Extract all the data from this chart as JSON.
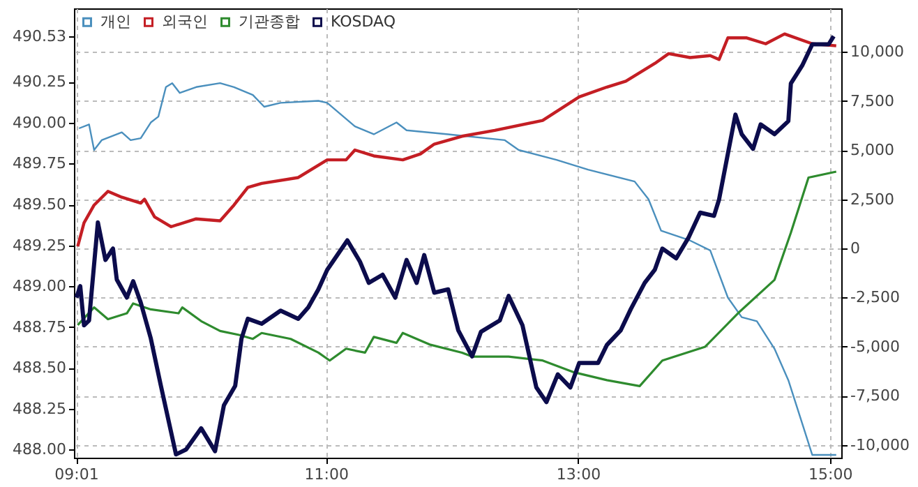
{
  "chart_data": {
    "type": "line",
    "xlim": [
      9.0,
      15.09
    ],
    "xticks": [
      {
        "value": 9.0167,
        "label": "09:01"
      },
      {
        "value": 11,
        "label": "11:00"
      },
      {
        "value": 13,
        "label": "13:00"
      },
      {
        "value": 15,
        "label": "15:00"
      }
    ],
    "ylim": [
      487.95,
      490.7
    ],
    "yticks": [
      {
        "value": 488,
        "label": "488.00"
      },
      488.25,
      {
        "value": 488.5,
        "label": "488.50"
      },
      488.75,
      {
        "value": 489,
        "label": "489.00"
      },
      489.25,
      {
        "value": 489.5,
        "label": "489.50"
      },
      489.75,
      {
        "value": 490,
        "label": "490.00"
      },
      490.25,
      490.53
    ],
    "y2lim": [
      -10640,
      12200
    ],
    "y2ticks": [
      {
        "value": -10000,
        "label": "-10,000"
      },
      {
        "value": -7500,
        "label": "-7,500"
      },
      {
        "value": -5000,
        "label": "-5,000"
      },
      {
        "value": -2500,
        "label": "-2,500"
      },
      0,
      {
        "value": 2500,
        "label": "2,500"
      },
      {
        "value": 5000,
        "label": "5,000"
      },
      {
        "value": 7500,
        "label": "7,500"
      },
      {
        "value": 10000,
        "label": "10,000"
      }
    ],
    "grid": true,
    "legend": "top left",
    "line_style": "solid",
    "marker": "none",
    "series": [
      {
        "name": "개인",
        "color": "#4a8fbd",
        "axis": "y2",
        "x": [
          9.04,
          9.12,
          9.16,
          9.22,
          9.38,
          9.45,
          9.53,
          9.61,
          9.67,
          9.73,
          9.78,
          9.84,
          9.97,
          10.16,
          10.27,
          10.42,
          10.51,
          10.64,
          10.94,
          11.01,
          11.23,
          11.38,
          11.56,
          11.64,
          11.97,
          12.42,
          12.53,
          12.83,
          13.08,
          13.45,
          13.56,
          13.66,
          13.89,
          14.05,
          14.19,
          14.3,
          14.42,
          14.56,
          14.67,
          14.78,
          14.86,
          15.05
        ],
        "values": [
          6100,
          6300,
          5000,
          5500,
          5900,
          5500,
          5600,
          6400,
          6700,
          8200,
          8400,
          7900,
          8200,
          8400,
          8200,
          7800,
          7200,
          7400,
          7500,
          7400,
          6200,
          5800,
          6400,
          6000,
          5800,
          5500,
          5000,
          4500,
          4000,
          3400,
          2500,
          900,
          400,
          -100,
          -2500,
          -3500,
          -3700,
          -5100,
          -6700,
          -8900,
          -10500,
          -10500
        ]
      },
      {
        "name": "외국인",
        "color": "#c41e24",
        "axis": "y2",
        "x": [
          9.03,
          9.08,
          9.16,
          9.27,
          9.38,
          9.53,
          9.56,
          9.64,
          9.77,
          9.97,
          10.16,
          10.27,
          10.38,
          10.49,
          10.78,
          11.01,
          11.16,
          11.23,
          11.38,
          11.61,
          11.75,
          11.86,
          12.08,
          12.34,
          12.72,
          13.01,
          13.23,
          13.38,
          13.61,
          13.72,
          13.89,
          14.05,
          14.12,
          14.19,
          14.34,
          14.49,
          14.64,
          14.86,
          15.05
        ],
        "values": [
          100,
          1300,
          2200,
          2900,
          2600,
          2300,
          2500,
          1600,
          1100,
          1500,
          1400,
          2200,
          3100,
          3300,
          3600,
          4500,
          4500,
          5000,
          4700,
          4500,
          4800,
          5300,
          5700,
          6000,
          6500,
          7700,
          8200,
          8500,
          9400,
          9900,
          9700,
          9800,
          9600,
          10700,
          10700,
          10400,
          10900,
          10400,
          10300
        ]
      },
      {
        "name": "기관종합",
        "color": "#2e8b2e",
        "axis": "y2",
        "x": [
          9.03,
          9.16,
          9.27,
          9.42,
          9.47,
          9.61,
          9.83,
          9.86,
          10.01,
          10.16,
          10.31,
          10.42,
          10.49,
          10.72,
          10.94,
          11.03,
          11.16,
          11.31,
          11.38,
          11.56,
          11.61,
          11.83,
          12.08,
          12.16,
          12.45,
          12.72,
          12.97,
          13.23,
          13.49,
          13.67,
          14.01,
          14.27,
          14.56,
          14.69,
          14.83,
          15.05
        ],
        "values": [
          -3900,
          -3000,
          -3600,
          -3300,
          -2800,
          -3100,
          -3300,
          -3000,
          -3700,
          -4200,
          -4400,
          -4600,
          -4300,
          -4600,
          -5300,
          -5700,
          -5100,
          -5300,
          -4500,
          -4800,
          -4300,
          -4900,
          -5300,
          -5500,
          -5500,
          -5700,
          -6300,
          -6700,
          -7000,
          -5700,
          -5000,
          -3300,
          -1600,
          800,
          3600,
          3900
        ]
      },
      {
        "name": "KOSDAQ",
        "color": "#0c0c4c",
        "x": [
          9.02,
          9.05,
          9.08,
          9.12,
          9.19,
          9.25,
          9.31,
          9.34,
          9.42,
          9.47,
          9.53,
          9.61,
          9.69,
          9.81,
          9.89,
          10.01,
          10.12,
          10.19,
          10.28,
          10.33,
          10.38,
          10.49,
          10.64,
          10.78,
          10.86,
          10.94,
          11.01,
          11.17,
          11.27,
          11.34,
          11.45,
          11.55,
          11.64,
          11.72,
          11.78,
          11.86,
          11.97,
          12.05,
          12.16,
          12.23,
          12.38,
          12.45,
          12.56,
          12.67,
          12.75,
          12.84,
          12.94,
          13.01,
          13.16,
          13.23,
          13.34,
          13.42,
          13.53,
          13.61,
          13.67,
          13.78,
          13.88,
          13.97,
          14.08,
          14.12,
          14.19,
          14.25,
          14.3,
          14.39,
          14.45,
          14.56,
          14.67,
          14.69,
          14.78,
          14.86,
          14.99,
          15.03
        ],
        "values": [
          488.93,
          489.0,
          488.76,
          488.79,
          489.39,
          489.16,
          489.23,
          489.04,
          488.93,
          489.03,
          488.9,
          488.68,
          488.39,
          487.97,
          488.0,
          488.13,
          487.99,
          488.27,
          488.39,
          488.68,
          488.8,
          488.77,
          488.85,
          488.8,
          488.87,
          488.98,
          489.1,
          489.28,
          489.15,
          489.02,
          489.07,
          488.93,
          489.16,
          489.02,
          489.19,
          488.96,
          488.98,
          488.73,
          488.57,
          488.72,
          488.79,
          488.94,
          488.76,
          488.38,
          488.29,
          488.46,
          488.38,
          488.53,
          488.53,
          488.64,
          488.73,
          488.86,
          489.02,
          489.1,
          489.23,
          489.17,
          489.3,
          489.45,
          489.43,
          489.53,
          489.81,
          490.05,
          489.93,
          489.84,
          489.99,
          489.93,
          490.01,
          490.24,
          490.35,
          490.48,
          490.48,
          490.53
        ]
      }
    ]
  }
}
